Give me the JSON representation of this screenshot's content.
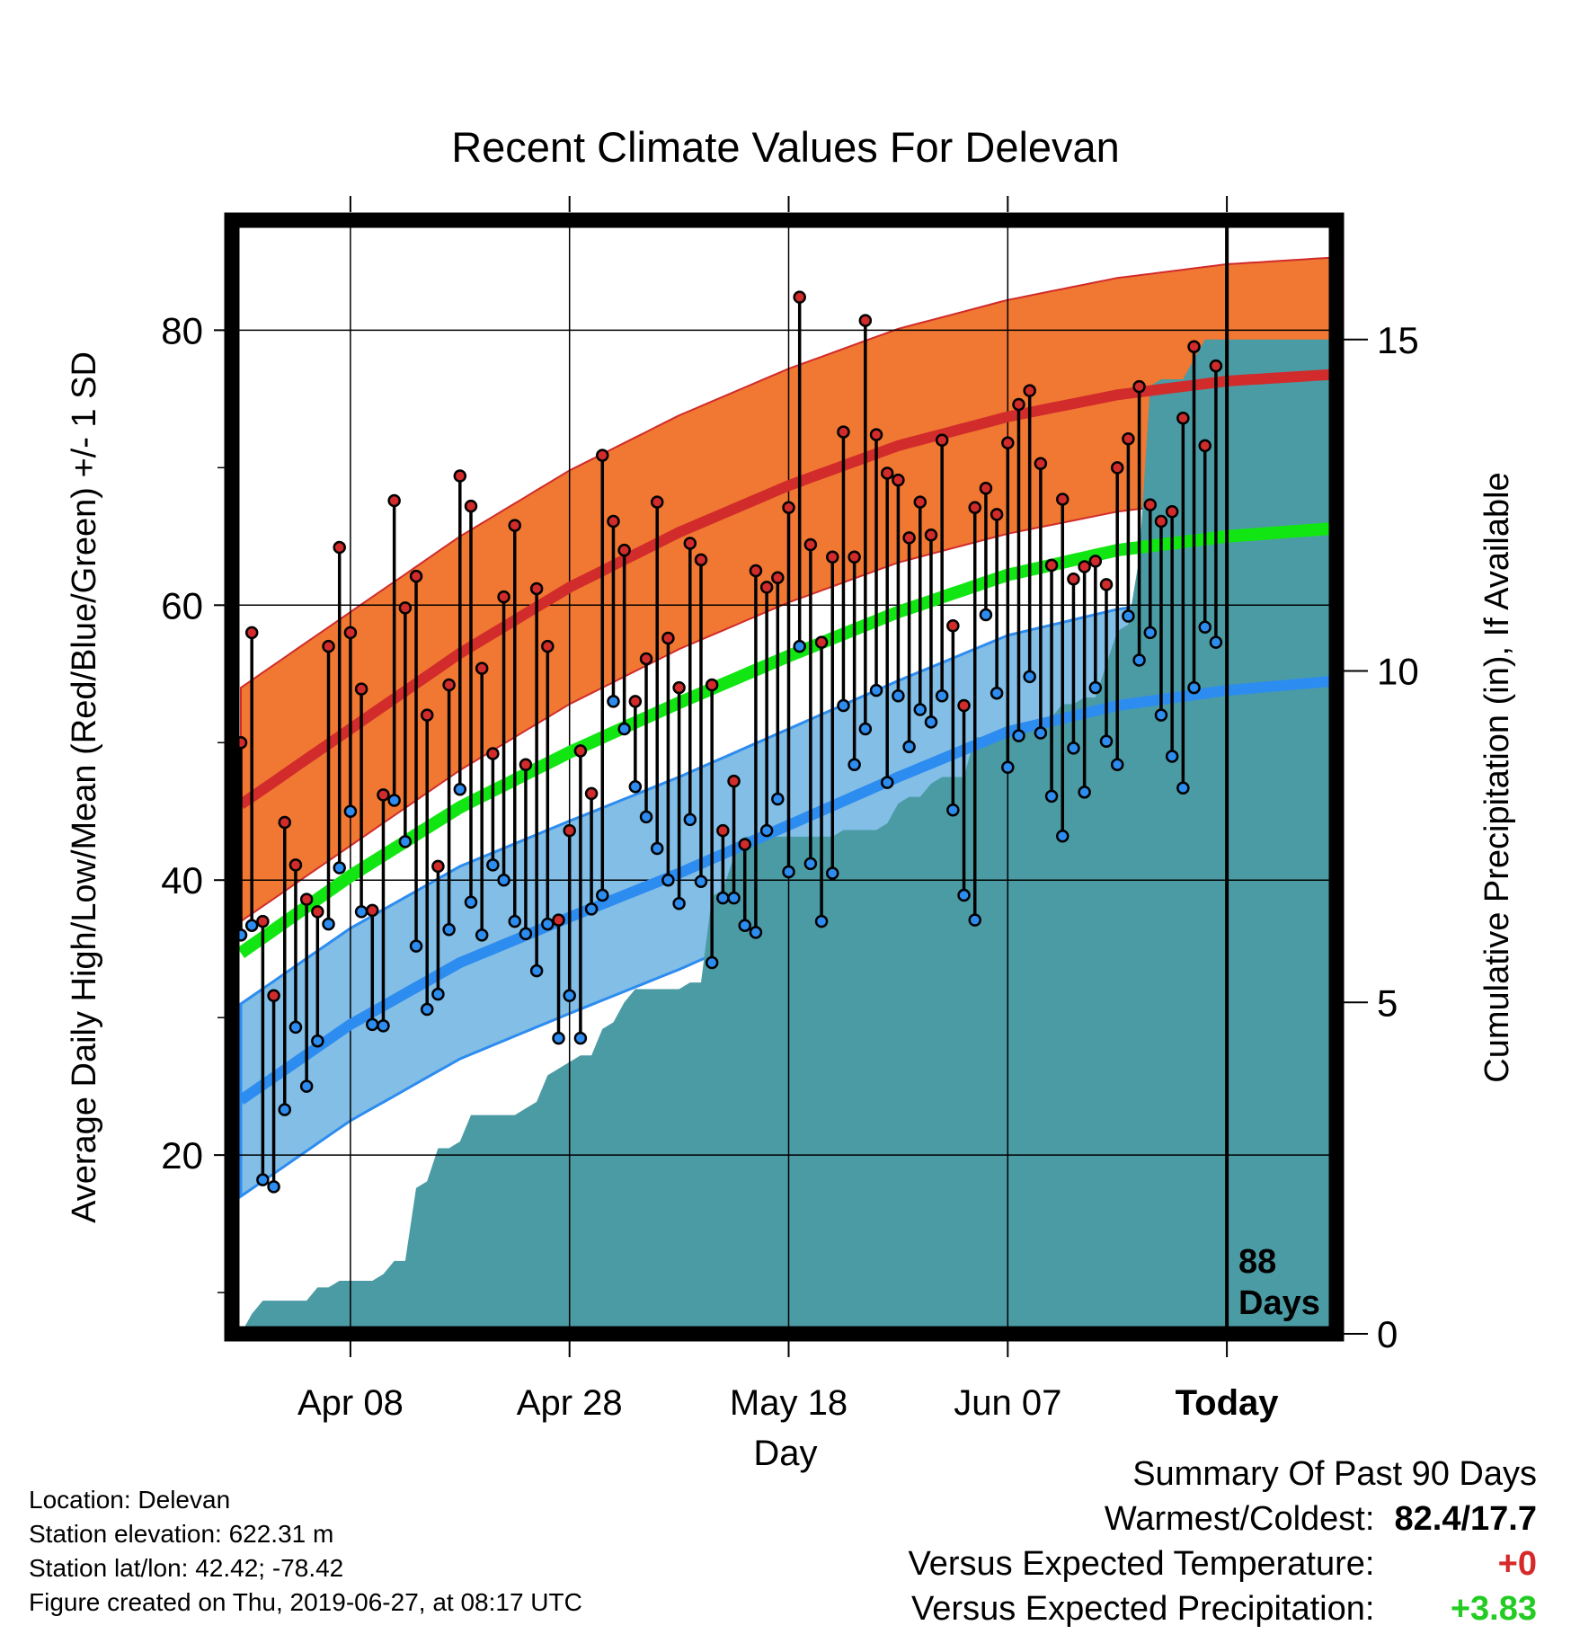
{
  "chart_data": {
    "type": "line",
    "title": "Recent Climate Values For Delevan",
    "xlabel": "Day",
    "ylabel": "Average Daily High/Low/Mean (Red/Blue/Green) +/- 1 SD",
    "y2label": "Cumulative Precipitation (in), If Available",
    "x_tick_labels": [
      "Apr 08",
      "Apr 28",
      "May 18",
      "Jun 07",
      "Today"
    ],
    "x_tick_days": [
      10,
      30,
      50,
      70,
      90
    ],
    "xlim": [
      0,
      100
    ],
    "ylim": [
      7,
      88
    ],
    "y_ticks": [
      20,
      40,
      60,
      80
    ],
    "y2lim": [
      0,
      16.8
    ],
    "y2_ticks": [
      0,
      5,
      10,
      15
    ],
    "grid": true,
    "today_day": 90,
    "today_label_line1": "88",
    "today_label_line2": "Days",
    "colors": {
      "high_band": "#f07832",
      "high_mean": "#d12b2b",
      "low_band": "#82bee6",
      "low_mean": "#2d8cf0",
      "mean_line": "#12e612",
      "precip": "#4b9ba5",
      "high_marker": "#d12b2b",
      "low_marker": "#2d8cf0"
    },
    "normals": {
      "days": [
        0,
        10,
        20,
        30,
        40,
        50,
        60,
        70,
        80,
        90,
        100
      ],
      "high_mean": [
        45.5,
        51.0,
        56.5,
        61.3,
        65.3,
        68.7,
        71.6,
        73.7,
        75.3,
        76.3,
        76.8
      ],
      "high_sd": 8.5,
      "low_mean": [
        24.0,
        29.5,
        34.0,
        37.3,
        40.5,
        44.0,
        47.5,
        50.8,
        52.7,
        53.8,
        54.5
      ],
      "low_sd": 7.0,
      "mean": [
        34.7,
        40.3,
        45.3,
        49.3,
        52.9,
        56.3,
        59.5,
        62.2,
        64.0,
        65.0,
        65.6
      ]
    },
    "series": [
      {
        "name": "High",
        "days": [
          0,
          1,
          2,
          3,
          4,
          5,
          6,
          7,
          8,
          9,
          10,
          11,
          12,
          13,
          14,
          15,
          16,
          17,
          18,
          19,
          20,
          21,
          22,
          23,
          24,
          25,
          26,
          27,
          28,
          29,
          30,
          31,
          32,
          33,
          34,
          35,
          36,
          37,
          38,
          39,
          40,
          41,
          42,
          43,
          44,
          45,
          46,
          47,
          48,
          49,
          50,
          51,
          52,
          53,
          54,
          55,
          56,
          57,
          58,
          59,
          60,
          61,
          62,
          63,
          64,
          65,
          66,
          67,
          68,
          69,
          70,
          71,
          72,
          73,
          74,
          75,
          76,
          77,
          78,
          79,
          80,
          81,
          82,
          83,
          84,
          85,
          86,
          87,
          88,
          89
        ],
        "values": [
          50,
          58,
          37,
          31.6,
          44.2,
          41.1,
          38.6,
          37.7,
          57,
          64.2,
          58,
          53.9,
          37.8,
          46.2,
          67.6,
          59.8,
          62.1,
          52,
          41,
          54.2,
          69.4,
          67.2,
          55.4,
          49.2,
          60.6,
          65.8,
          48.4,
          61.2,
          57,
          37.1,
          43.6,
          49.4,
          46.3,
          70.9,
          66.1,
          64,
          53,
          56.1,
          67.5,
          57.6,
          54,
          64.5,
          63.3,
          54.2,
          43.6,
          47.2,
          42.6,
          62.5,
          61.3,
          62,
          67.1,
          82.4,
          64.4,
          57.3,
          63.5,
          72.6,
          63.5,
          80.7,
          72.4,
          69.6,
          69.1,
          64.9,
          67.5,
          65.1,
          72,
          58.5,
          52.7,
          67.1,
          68.5,
          66.6,
          71.8,
          74.6,
          75.6,
          70.3,
          62.9,
          67.7,
          61.9,
          62.8,
          63.2,
          61.5,
          70,
          72.1,
          75.9,
          67.3,
          66.1,
          66.8,
          73.6,
          78.8,
          71.6,
          77.4
        ]
      },
      {
        "name": "Low",
        "days": [
          0,
          1,
          2,
          3,
          4,
          5,
          6,
          7,
          8,
          9,
          10,
          11,
          12,
          13,
          14,
          15,
          16,
          17,
          18,
          19,
          20,
          21,
          22,
          23,
          24,
          25,
          26,
          27,
          28,
          29,
          30,
          31,
          32,
          33,
          34,
          35,
          36,
          37,
          38,
          39,
          40,
          41,
          42,
          43,
          44,
          45,
          46,
          47,
          48,
          49,
          50,
          51,
          52,
          53,
          54,
          55,
          56,
          57,
          58,
          59,
          60,
          61,
          62,
          63,
          64,
          65,
          66,
          67,
          68,
          69,
          70,
          71,
          72,
          73,
          74,
          75,
          76,
          77,
          78,
          79,
          80,
          81,
          82,
          83,
          84,
          85,
          86,
          87,
          88,
          89
        ],
        "values": [
          36,
          36.7,
          18.2,
          17.7,
          23.3,
          29.3,
          25,
          28.3,
          36.8,
          40.9,
          45,
          37.7,
          29.5,
          29.4,
          45.8,
          42.8,
          35.2,
          30.6,
          31.7,
          36.4,
          46.6,
          38.4,
          36,
          41.1,
          40,
          37,
          36.1,
          33.4,
          36.8,
          28.5,
          31.6,
          28.5,
          37.9,
          38.9,
          53,
          51,
          46.8,
          44.6,
          42.3,
          40,
          38.3,
          44.4,
          39.9,
          34,
          38.7,
          38.7,
          36.7,
          36.2,
          43.6,
          45.9,
          40.6,
          57,
          41.2,
          37,
          40.5,
          52.7,
          48.4,
          51,
          53.8,
          47.1,
          53.4,
          49.7,
          52.4,
          51.5,
          53.4,
          45.1,
          38.9,
          37.1,
          59.3,
          53.6,
          48.2,
          50.5,
          54.8,
          50.7,
          46.1,
          43.2,
          49.6,
          46.4,
          54,
          50.1,
          48.4,
          59.2,
          56,
          58,
          52,
          49,
          46.7,
          54,
          58.4,
          57.3
        ]
      }
    ],
    "precip": {
      "days": [
        0,
        1,
        2,
        3,
        4,
        5,
        6,
        7,
        8,
        9,
        10,
        11,
        12,
        13,
        14,
        15,
        16,
        17,
        18,
        19,
        20,
        21,
        22,
        23,
        24,
        25,
        26,
        27,
        28,
        29,
        30,
        31,
        32,
        33,
        34,
        35,
        36,
        37,
        38,
        39,
        40,
        41,
        42,
        43,
        44,
        45,
        46,
        47,
        48,
        49,
        50,
        51,
        52,
        53,
        54,
        55,
        56,
        57,
        58,
        59,
        60,
        61,
        62,
        63,
        64,
        65,
        66,
        67,
        68,
        69,
        70,
        71,
        72,
        73,
        74,
        75,
        76,
        77,
        78,
        79,
        80,
        81,
        82,
        83,
        84,
        85,
        86,
        87,
        88,
        89,
        90,
        91,
        92,
        93,
        94,
        95,
        96,
        97,
        98,
        99,
        100
      ],
      "values": [
        0,
        0.3,
        0.5,
        0.5,
        0.5,
        0.5,
        0.5,
        0.7,
        0.7,
        0.8,
        0.8,
        0.8,
        0.8,
        0.9,
        1.1,
        1.1,
        2.2,
        2.3,
        2.8,
        2.8,
        2.9,
        3.3,
        3.3,
        3.3,
        3.3,
        3.3,
        3.4,
        3.5,
        3.9,
        4,
        4.1,
        4.2,
        4.2,
        4.6,
        4.7,
        5,
        5.2,
        5.2,
        5.2,
        5.2,
        5.2,
        5.3,
        5.3,
        6.6,
        6.7,
        7.2,
        7.5,
        7.5,
        7.5,
        7.5,
        7.5,
        7.5,
        7.5,
        7.5,
        7.5,
        7.6,
        7.6,
        7.6,
        7.6,
        7.7,
        8,
        8.1,
        8.1,
        8.3,
        8.4,
        8.4,
        8.4,
        9,
        9,
        9,
        9,
        9.2,
        9.2,
        9.2,
        9.3,
        9.5,
        9.5,
        9.6,
        9.6,
        10.1,
        10.6,
        10.7,
        11.7,
        14.3,
        14.4,
        14.4,
        14.4,
        14.7,
        15,
        15,
        15,
        15,
        15,
        15,
        15,
        15,
        15,
        15,
        15,
        15,
        15
      ]
    }
  },
  "footer": {
    "location": "Location: Delevan",
    "elevation": "Station elevation: 622.31 m",
    "latlon": "Station lat/lon: 42.42; -78.42",
    "created": "Figure created on Thu, 2019-06-27, at 08:17 UTC"
  },
  "summary": {
    "heading": "Summary Of Past 90 Days",
    "warmest_label": "Warmest/Coldest:",
    "warmest_value": "82.4/17.7",
    "temp_label": "Versus Expected Temperature:",
    "temp_value": "+0",
    "precip_label": "Versus Expected Precipitation:",
    "precip_value": "+3.83"
  }
}
